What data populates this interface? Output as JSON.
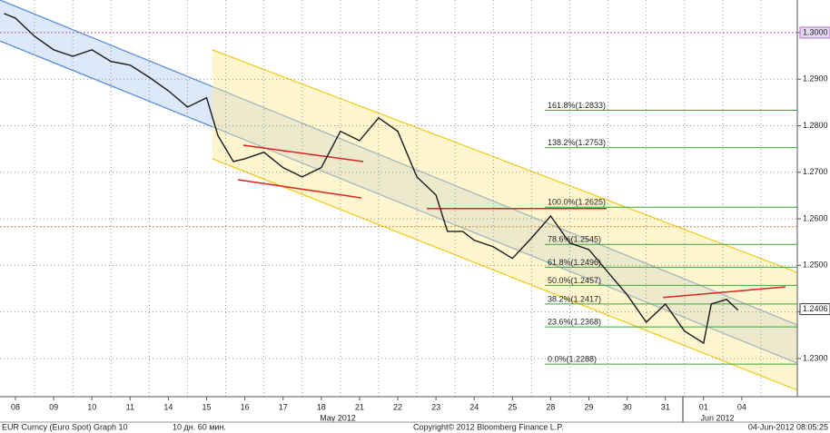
{
  "chart_data": {
    "type": "line",
    "color": "#1a1a1a",
    "x": [
      -0.3,
      0,
      0.5,
      1,
      1.5,
      2,
      2.5,
      3,
      3.5,
      4,
      4.5,
      5,
      5.3,
      5.7,
      6,
      6.5,
      7,
      7.5,
      8,
      8.5,
      9,
      9.5,
      10,
      10.5,
      11,
      11.3,
      11.7,
      12,
      12.5,
      13,
      13.5,
      14,
      14.5,
      15,
      15.5,
      16,
      16.5,
      17,
      17.5,
      18,
      18.2,
      18.6,
      18.9
    ],
    "values": [
      1.3041,
      1.3031,
      1.2992,
      1.2963,
      1.2949,
      1.2963,
      1.2938,
      1.293,
      1.2904,
      1.2875,
      1.284,
      1.286,
      1.2778,
      1.2723,
      1.2729,
      1.2743,
      1.271,
      1.269,
      1.271,
      1.2788,
      1.2768,
      1.2817,
      1.2788,
      1.269,
      1.2651,
      1.2573,
      1.2573,
      1.2554,
      1.254,
      1.2515,
      1.2559,
      1.2606,
      1.2548,
      1.2534,
      1.2485,
      1.2437,
      1.2378,
      1.2417,
      1.2359,
      1.2333,
      1.2417,
      1.2427,
      1.2404
    ],
    "xlim": [
      -0.404,
      20.451
    ],
    "ylim": [
      1.2218,
      1.307
    ],
    "xticks": [
      {
        "value": 0,
        "label": "08"
      },
      {
        "value": 1,
        "label": "09"
      },
      {
        "value": 2,
        "label": "10"
      },
      {
        "value": 3,
        "label": "11"
      },
      {
        "value": 4,
        "label": "14"
      },
      {
        "value": 5,
        "label": "15"
      },
      {
        "value": 6,
        "label": "16"
      },
      {
        "value": 7,
        "label": "17"
      },
      {
        "value": 8,
        "label": "18"
      },
      {
        "value": 9,
        "label": "21"
      },
      {
        "value": 10,
        "label": "22"
      },
      {
        "value": 11,
        "label": "23"
      },
      {
        "value": 12,
        "label": "24"
      },
      {
        "value": 13,
        "label": "25"
      },
      {
        "value": 14,
        "label": "28"
      },
      {
        "value": 15,
        "label": "29"
      },
      {
        "value": 16,
        "label": "30"
      },
      {
        "value": 17,
        "label": "31"
      },
      {
        "value": 18,
        "label": "01"
      },
      {
        "value": 19,
        "label": "04"
      }
    ],
    "yticks": [
      {
        "value": 1.23,
        "label": "1.2300"
      },
      {
        "value": 1.24,
        "label": "1.2400"
      },
      {
        "value": 1.25,
        "label": "1.2500"
      },
      {
        "value": 1.26,
        "label": "1.2600"
      },
      {
        "value": 1.27,
        "label": "1.2700"
      },
      {
        "value": 1.28,
        "label": "1.2800"
      },
      {
        "value": 1.29,
        "label": "1.2900"
      },
      {
        "value": 1.3,
        "label": "1.3000"
      }
    ],
    "grid": true,
    "month_labels": [
      "May 2012",
      "Jun 2012"
    ],
    "last_price": {
      "value": 1.2406,
      "label": "1.2406"
    },
    "hlines": [
      {
        "value": 1.3,
        "color": "#b070c8"
      },
      {
        "value": 1.2583,
        "color": "#d08a30"
      }
    ],
    "channels": [
      {
        "color": "#5b8fd8",
        "fill": "rgba(180,205,240,0.45)",
        "upper": {
          "x": [
            -0.404,
            20.451
          ],
          "y": [
            1.307,
            1.2372
          ]
        },
        "lower": {
          "x": [
            -0.404,
            20.451
          ],
          "y": [
            1.2982,
            1.229
          ]
        }
      },
      {
        "color": "#f2cc20",
        "fill": "rgba(255,236,150,0.45)",
        "upper": {
          "x": [
            5.15,
            20.451
          ],
          "y": [
            1.2963,
            1.2485
          ]
        },
        "lower": {
          "x": [
            5.15,
            20.451
          ],
          "y": [
            1.2729,
            1.2232
          ]
        }
      }
    ],
    "trendlines": [
      {
        "color": "#e02020",
        "x": [
          5.96,
          9.1
        ],
        "y": [
          1.2758,
          1.2723
        ]
      },
      {
        "color": "#e02020",
        "x": [
          5.82,
          9.05
        ],
        "y": [
          1.2684,
          1.2645
        ]
      },
      {
        "color": "#e02020",
        "x": [
          10.76,
          15.46
        ],
        "y": [
          1.2622,
          1.2622
        ]
      },
      {
        "color": "#e02020",
        "x": [
          16.94,
          20.14
        ],
        "y": [
          1.2431,
          1.2454
        ]
      }
    ],
    "fib_color": "#3aa83a",
    "fib_levels": [
      {
        "label": "161.8%(1.2833)",
        "value": 1.2833
      },
      {
        "label": "138.2%(1.2753)",
        "value": 1.2753
      },
      {
        "label": "100.0%(1.2625)",
        "value": 1.2625
      },
      {
        "label": "78.6%(1.2545)",
        "value": 1.2545
      },
      {
        "label": "61.8%(1.2496)",
        "value": 1.2496
      },
      {
        "label": "50.0%(1.2457)",
        "value": 1.2457
      },
      {
        "label": "38.2%(1.2417)",
        "value": 1.2417
      },
      {
        "label": "23.6%(1.2368)",
        "value": 1.2368
      },
      {
        "label": "0.0%(1.2288)",
        "value": 1.2288
      }
    ],
    "footer": {
      "security": "EUR Curncy (Euro Spot) Graph 10",
      "period": "10 дн. 60 мин.",
      "copyright": "Copyright© 2012 Bloomberg Finance L.P.",
      "timestamp": "04-Jun-2012 08:05:25"
    }
  }
}
